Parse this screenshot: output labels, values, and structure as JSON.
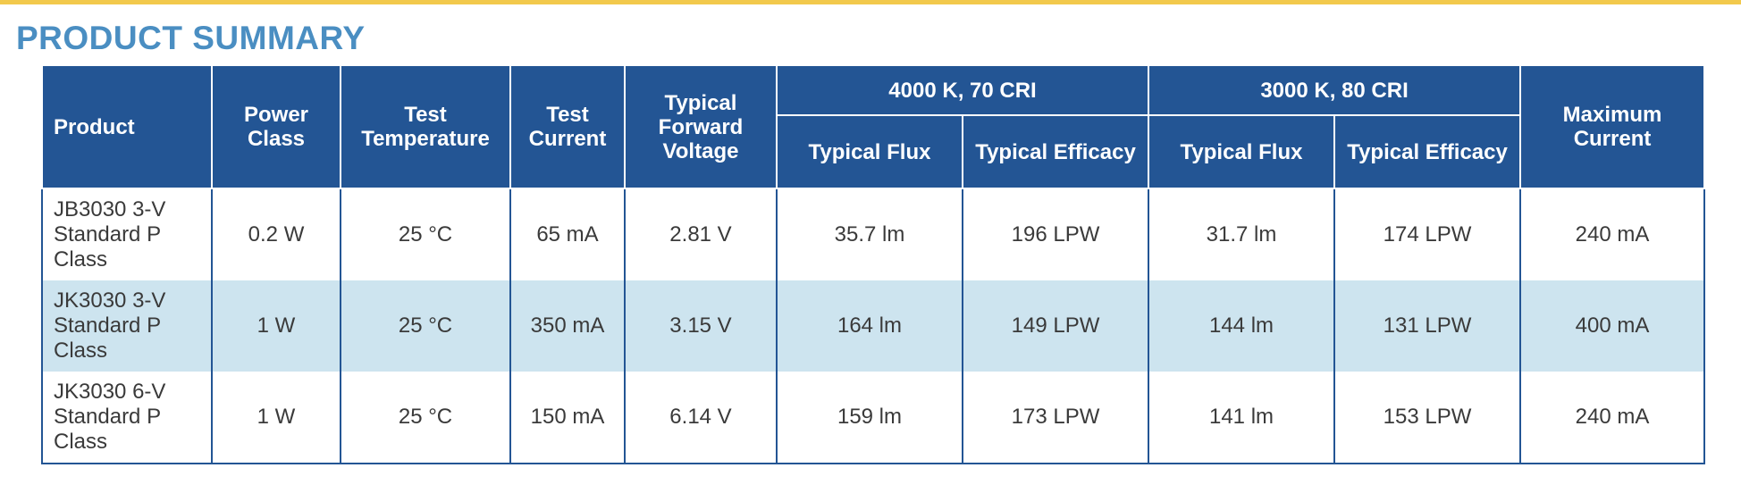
{
  "section_title": "PRODUCT SUMMARY",
  "colors": {
    "header_bg": "#235594",
    "title": "#4a8ec2",
    "stripe": "#cde4ef",
    "top_rule": "#f2c94c"
  },
  "table": {
    "headers": {
      "product": "Product",
      "power_class": "Power Class",
      "test_temperature": "Test Temperature",
      "test_current": "Test Current",
      "forward_voltage": "Typical Forward Voltage",
      "group_4000k": "4000 K, 70 CRI",
      "group_3000k": "3000 K, 80 CRI",
      "typical_flux": "Typical Flux",
      "typical_efficacy": "Typical Efficacy",
      "maximum_current": "Maximum Current"
    },
    "rows": [
      {
        "product": "JB3030 3-V Standard P Class",
        "power_class": "0.2 W",
        "test_temperature": "25 °C",
        "test_current": "65 mA",
        "forward_voltage": "2.81 V",
        "flux_4000k": "35.7 lm",
        "efficacy_4000k": "196 LPW",
        "flux_3000k": "31.7 lm",
        "efficacy_3000k": "174 LPW",
        "maximum_current": "240 mA"
      },
      {
        "product": "JK3030 3-V Standard P Class",
        "power_class": "1 W",
        "test_temperature": "25 °C",
        "test_current": "350 mA",
        "forward_voltage": "3.15 V",
        "flux_4000k": "164 lm",
        "efficacy_4000k": "149 LPW",
        "flux_3000k": "144 lm",
        "efficacy_3000k": "131 LPW",
        "maximum_current": "400 mA"
      },
      {
        "product": "JK3030 6-V Standard P Class",
        "power_class": "1 W",
        "test_temperature": "25 °C",
        "test_current": "150 mA",
        "forward_voltage": "6.14 V",
        "flux_4000k": "159 lm",
        "efficacy_4000k": "173 LPW",
        "flux_3000k": "141 lm",
        "efficacy_3000k": "153 LPW",
        "maximum_current": "240 mA"
      }
    ]
  }
}
